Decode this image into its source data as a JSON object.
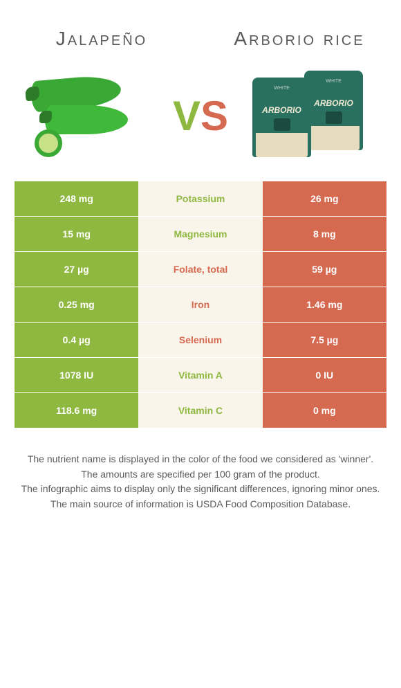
{
  "header": {
    "left": "Jalapeño",
    "right": "Arborio rice"
  },
  "vs": {
    "v": "V",
    "s": "S"
  },
  "colors": {
    "green": "#8fb840",
    "orange": "#d66a50",
    "cream": "#f9f5ea",
    "text": "#5a5a5a"
  },
  "nutrients": [
    {
      "name": "Potassium",
      "left": "248 mg",
      "right": "26 mg",
      "winner": "left"
    },
    {
      "name": "Magnesium",
      "left": "15 mg",
      "right": "8 mg",
      "winner": "left"
    },
    {
      "name": "Folate, total",
      "left": "27 µg",
      "right": "59 µg",
      "winner": "right"
    },
    {
      "name": "Iron",
      "left": "0.25 mg",
      "right": "1.46 mg",
      "winner": "right"
    },
    {
      "name": "Selenium",
      "left": "0.4 µg",
      "right": "7.5 µg",
      "winner": "right"
    },
    {
      "name": "Vitamin A",
      "left": "1078 IU",
      "right": "0 IU",
      "winner": "left"
    },
    {
      "name": "Vitamin C",
      "left": "118.6 mg",
      "right": "0 mg",
      "winner": "left"
    }
  ],
  "footer": {
    "line1": "The nutrient name is displayed in the color of the food we considered as 'winner'.",
    "line2": "The amounts are specified per 100 gram of the product.",
    "line3": "The infographic aims to display only the significant differences, ignoring minor ones.",
    "line4": "The main source of information is USDA Food Composition Database."
  }
}
